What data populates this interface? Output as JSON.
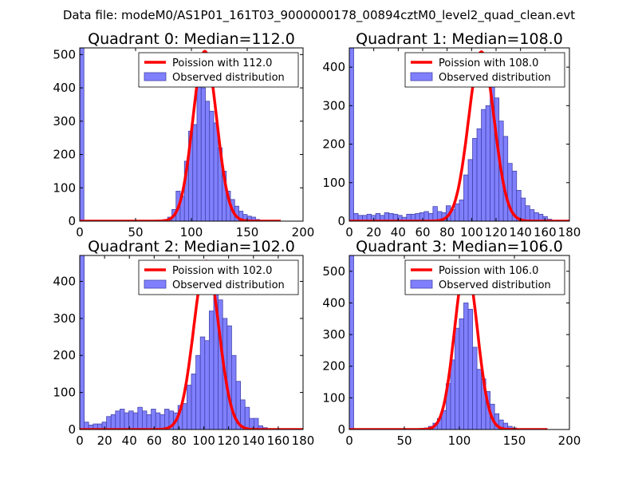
{
  "figure_title": "Data file: modeM0/AS1P01_161T03_9000000178_00894cztM0_level2_quad_clean.evt",
  "colors": {
    "bar_fill": "#8080ff",
    "bar_edge": "#4444aa",
    "line": "#ff0000",
    "axes": "#000000"
  },
  "chart_data": [
    {
      "type": "bar",
      "title": "Quadrant 0: Median=112.0",
      "legend": {
        "placement": "top-right",
        "line_label": "Poission with 112.0",
        "bar_label": "Observed distribution"
      },
      "xlim": [
        0,
        200
      ],
      "ylim": [
        0,
        520
      ],
      "xticks": [
        0,
        50,
        100,
        150,
        200
      ],
      "yticks": [
        0,
        100,
        200,
        300,
        400,
        500
      ],
      "poisson_mean": 112.0,
      "poisson_peak": 510,
      "bin_width": 3.75,
      "bin_starts": [
        0,
        75,
        78.75,
        82.5,
        86.25,
        90,
        93.75,
        97.5,
        101.25,
        105,
        108.75,
        112.5,
        116.25,
        120,
        123.75,
        127.5,
        131.25,
        135,
        138.75,
        142.5,
        146.25,
        150,
        153.75,
        157.5,
        161.25
      ],
      "counts": [
        520,
        5,
        12,
        35,
        90,
        75,
        180,
        270,
        290,
        410,
        400,
        360,
        330,
        295,
        220,
        150,
        90,
        65,
        45,
        30,
        20,
        15,
        12,
        5,
        2
      ]
    },
    {
      "type": "bar",
      "title": "Quadrant 1: Median=108.0",
      "legend": {
        "placement": "top-right",
        "line_label": "Poission with 108.0",
        "bar_label": "Observed distribution"
      },
      "xlim": [
        0,
        180
      ],
      "ylim": [
        0,
        450
      ],
      "xticks": [
        0,
        20,
        40,
        60,
        80,
        100,
        120,
        140,
        160,
        180
      ],
      "yticks": [
        0,
        100,
        200,
        300,
        400
      ],
      "poisson_mean": 108.0,
      "poisson_peak": 440,
      "bin_width": 3.6,
      "bin_starts": [
        0,
        3.6,
        7.2,
        10.8,
        14.4,
        18,
        21.6,
        25.2,
        28.8,
        32.4,
        36,
        39.6,
        43.2,
        46.8,
        50.4,
        54,
        57.6,
        61.2,
        64.8,
        68.4,
        72,
        75.6,
        79.2,
        82.8,
        86.4,
        90,
        93.6,
        97.2,
        100.8,
        104.4,
        108,
        111.6,
        115.2,
        118.8,
        122.4,
        126,
        129.6,
        133.2,
        136.8,
        140.4,
        144,
        147.6,
        151.2,
        154.8,
        158.4,
        162
      ],
      "counts": [
        450,
        20,
        15,
        15,
        18,
        15,
        20,
        15,
        22,
        20,
        18,
        15,
        10,
        18,
        18,
        20,
        22,
        25,
        20,
        38,
        25,
        22,
        40,
        30,
        45,
        55,
        120,
        160,
        215,
        240,
        290,
        300,
        370,
        320,
        260,
        220,
        150,
        130,
        80,
        60,
        40,
        30,
        22,
        18,
        12,
        5
      ]
    },
    {
      "type": "bar",
      "title": "Quadrant 2: Median=102.0",
      "legend": {
        "placement": "top-right",
        "line_label": "Poission with 102.0",
        "bar_label": "Observed distribution"
      },
      "xlim": [
        0,
        180
      ],
      "ylim": [
        0,
        470
      ],
      "xticks": [
        0,
        20,
        40,
        60,
        80,
        100,
        120,
        140,
        160,
        180
      ],
      "yticks": [
        0,
        100,
        200,
        300,
        400
      ],
      "poisson_mean": 102.0,
      "poisson_peak": 455,
      "bin_width": 3.6,
      "bin_starts": [
        0,
        3.6,
        7.2,
        10.8,
        14.4,
        18,
        21.6,
        25.2,
        28.8,
        32.4,
        36,
        39.6,
        43.2,
        46.8,
        50.4,
        54,
        57.6,
        61.2,
        64.8,
        68.4,
        72,
        75.6,
        79.2,
        82.8,
        86.4,
        90,
        93.6,
        97.2,
        100.8,
        104.4,
        108,
        111.6,
        115.2,
        118.8,
        122.4,
        126,
        129.6,
        133.2,
        136.8,
        140.4,
        144,
        147.6
      ],
      "counts": [
        470,
        20,
        12,
        15,
        15,
        20,
        35,
        40,
        50,
        55,
        45,
        50,
        45,
        60,
        50,
        40,
        55,
        45,
        40,
        55,
        50,
        45,
        65,
        70,
        120,
        150,
        200,
        250,
        240,
        320,
        450,
        350,
        300,
        280,
        200,
        130,
        80,
        60,
        30,
        30,
        10,
        5
      ]
    },
    {
      "type": "bar",
      "title": "Quadrant 3: Median=106.0",
      "legend": {
        "placement": "top-right",
        "line_label": "Poission with 106.0",
        "bar_label": "Observed distribution"
      },
      "xlim": [
        0,
        200
      ],
      "ylim": [
        0,
        550
      ],
      "xticks": [
        0,
        50,
        100,
        150,
        200
      ],
      "yticks": [
        0,
        100,
        200,
        300,
        400,
        500
      ],
      "poisson_mean": 106.0,
      "poisson_peak": 525,
      "bin_width": 4,
      "bin_starts": [
        0,
        60,
        64,
        68,
        72,
        76,
        80,
        84,
        88,
        92,
        96,
        100,
        104,
        108,
        112,
        116,
        120,
        124,
        128,
        132,
        136,
        140,
        144,
        148
      ],
      "counts": [
        550,
        2,
        3,
        5,
        10,
        20,
        35,
        60,
        145,
        220,
        320,
        350,
        400,
        380,
        260,
        190,
        160,
        120,
        80,
        50,
        30,
        20,
        10,
        5
      ]
    }
  ]
}
